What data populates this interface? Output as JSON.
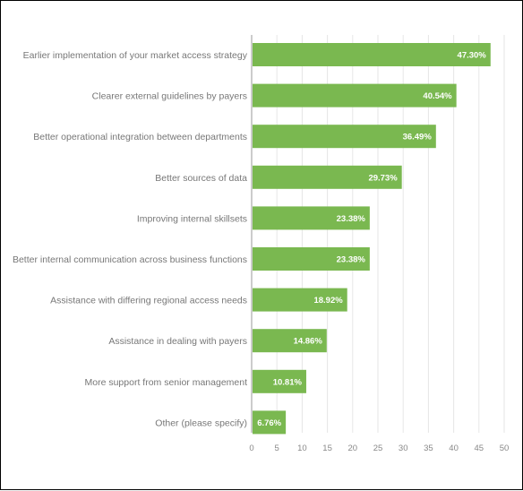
{
  "chart_data": {
    "type": "bar",
    "orientation": "horizontal",
    "categories": [
      "Earlier implementation of your market access strategy",
      "Clearer external guidelines by payers",
      "Better operational integration between departments",
      "Better sources of data",
      "Improving internal skillsets",
      "Better internal communication across business functions",
      "Assistance with differing regional access needs",
      "Assistance in dealing with payers",
      "More support from senior management",
      "Other (please specify)"
    ],
    "values": [
      47.3,
      40.54,
      36.49,
      29.73,
      23.38,
      23.38,
      18.92,
      14.86,
      10.81,
      6.76
    ],
    "value_labels": [
      "47.30%",
      "40.54%",
      "36.49%",
      "29.73%",
      "23.38%",
      "23.38%",
      "18.92%",
      "14.86%",
      "10.81%",
      "6.76%"
    ],
    "xticks": [
      0,
      5,
      10,
      15,
      20,
      25,
      30,
      35,
      40,
      45,
      50
    ],
    "xlim": [
      0,
      50
    ],
    "grid": "vertical",
    "legend": "none",
    "colors": {
      "bar": "#7ab850",
      "grid": "#e6e6e6",
      "axis": "#999999"
    }
  }
}
